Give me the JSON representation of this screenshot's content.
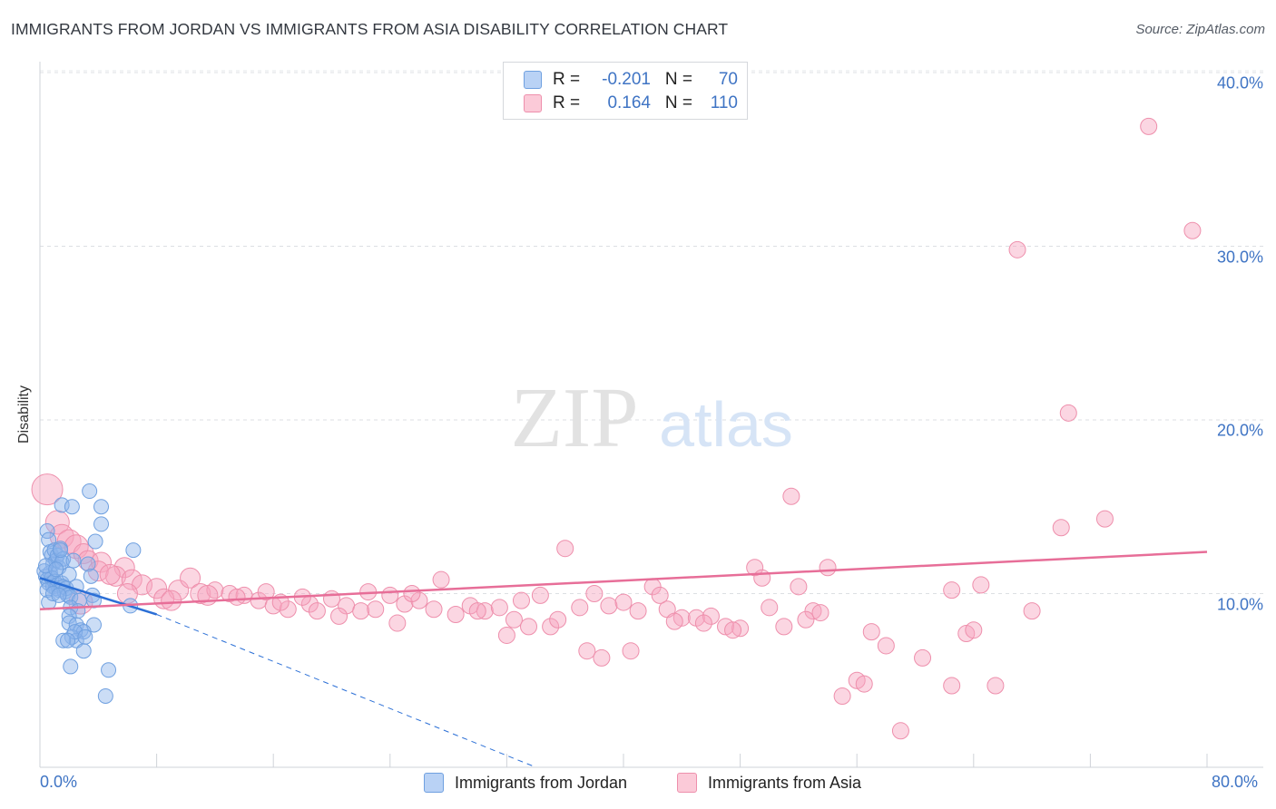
{
  "title": "IMMIGRANTS FROM JORDAN VS IMMIGRANTS FROM ASIA DISABILITY CORRELATION CHART",
  "source": "Source: ZipAtlas.com",
  "watermark": {
    "zip": "ZIP",
    "atlas": "atlas"
  },
  "colors": {
    "blue": "#6fa0e0",
    "blue_line": "#2b6fd6",
    "pink": "#ee8fac",
    "pink_line": "#e76e98",
    "axis_text": "#3f74c4"
  },
  "legend": {
    "rows": [
      {
        "r_label": "R =",
        "r_value": "-0.201",
        "n_label": "N =",
        "n_value": "70"
      },
      {
        "r_label": "R =",
        "r_value": "0.164",
        "n_label": "N =",
        "n_value": "110"
      }
    ]
  },
  "bottom_legend": {
    "blue": "Immigrants from Jordan",
    "pink": "Immigrants from Asia"
  },
  "chart_data": {
    "type": "scatter",
    "title": "IMMIGRANTS FROM JORDAN VS IMMIGRANTS FROM ASIA DISABILITY CORRELATION CHART",
    "xlabel": "",
    "ylabel": "Disability",
    "xlim": [
      0,
      80
    ],
    "ylim": [
      0,
      40
    ],
    "x_tick_labels": [
      "0.0%",
      "80.0%"
    ],
    "y_ticks": [
      10,
      20,
      30,
      40
    ],
    "y_tick_labels": [
      "10.0%",
      "20.0%",
      "30.0%",
      "40.0%"
    ],
    "grid": true,
    "legend_position": "top-center",
    "series": [
      {
        "name": "Immigrants from Jordan",
        "r": -0.201,
        "n": 70,
        "trend": {
          "x0": 0,
          "y0": 10.9,
          "x1": 8,
          "y1": 8.8,
          "dashed_to_x": 34,
          "dashed_to_y": 0
        },
        "points": [
          [
            0.5,
            13.6
          ],
          [
            0.6,
            13.1
          ],
          [
            0.7,
            12.4
          ],
          [
            0.8,
            12.2
          ],
          [
            0.9,
            11.7
          ],
          [
            1.0,
            12.5
          ],
          [
            1.1,
            11.9
          ],
          [
            1.2,
            12.2
          ],
          [
            1.3,
            11.5
          ],
          [
            1.4,
            12.6
          ],
          [
            0.4,
            11.0
          ],
          [
            0.5,
            10.8
          ],
          [
            0.6,
            10.6
          ],
          [
            0.7,
            11.2
          ],
          [
            0.8,
            10.9
          ],
          [
            0.9,
            10.4
          ],
          [
            1.0,
            10.7
          ],
          [
            1.1,
            10.3
          ],
          [
            1.2,
            10.5
          ],
          [
            1.3,
            10.2
          ],
          [
            1.5,
            10.6
          ],
          [
            1.6,
            10.4
          ],
          [
            1.7,
            10.1
          ],
          [
            1.8,
            10.3
          ],
          [
            1.9,
            9.9
          ],
          [
            0.3,
            11.3
          ],
          [
            0.4,
            11.6
          ],
          [
            0.5,
            10.2
          ],
          [
            0.6,
            9.5
          ],
          [
            2.0,
            11.1
          ],
          [
            1.6,
            12.0
          ],
          [
            1.5,
            11.8
          ],
          [
            1.4,
            12.5
          ],
          [
            1.5,
            15.1
          ],
          [
            2.2,
            15.0
          ],
          [
            3.4,
            15.9
          ],
          [
            4.2,
            15.0
          ],
          [
            4.2,
            14.0
          ],
          [
            3.8,
            13.0
          ],
          [
            6.4,
            12.5
          ],
          [
            3.3,
            11.7
          ],
          [
            3.5,
            11.0
          ],
          [
            2.5,
            10.4
          ],
          [
            2.1,
            9.8
          ],
          [
            2.7,
            9.6
          ],
          [
            3.6,
            9.9
          ],
          [
            3.7,
            9.6
          ],
          [
            6.2,
            9.3
          ],
          [
            2.1,
            9.2
          ],
          [
            2.6,
            9.0
          ],
          [
            2.0,
            8.7
          ],
          [
            2.0,
            8.3
          ],
          [
            2.5,
            8.2
          ],
          [
            3.7,
            8.2
          ],
          [
            2.8,
            7.9
          ],
          [
            3.0,
            7.8
          ],
          [
            2.2,
            7.5
          ],
          [
            2.5,
            7.3
          ],
          [
            2.4,
            7.8
          ],
          [
            1.6,
            7.3
          ],
          [
            1.9,
            7.3
          ],
          [
            3.1,
            7.5
          ],
          [
            3.0,
            6.7
          ],
          [
            2.1,
            5.8
          ],
          [
            4.7,
            5.6
          ],
          [
            4.5,
            4.1
          ],
          [
            0.9,
            10.0
          ],
          [
            1.3,
            9.9
          ],
          [
            2.3,
            11.9
          ],
          [
            1.1,
            11.4
          ]
        ]
      },
      {
        "name": "Immigrants from Asia",
        "r": 0.164,
        "n": 110,
        "trend": {
          "x0": 0,
          "y0": 9.1,
          "x1": 80,
          "y1": 12.4
        },
        "points": [
          [
            0.5,
            16.0
          ],
          [
            1.2,
            14.1
          ],
          [
            1.5,
            13.3
          ],
          [
            2.0,
            13.0
          ],
          [
            2.5,
            12.7
          ],
          [
            3.0,
            12.3
          ],
          [
            3.3,
            11.9
          ],
          [
            4.2,
            11.8
          ],
          [
            4.0,
            11.3
          ],
          [
            5.8,
            11.5
          ],
          [
            5.2,
            11.0
          ],
          [
            6.3,
            10.8
          ],
          [
            7.0,
            10.5
          ],
          [
            8.0,
            10.3
          ],
          [
            9.5,
            10.2
          ],
          [
            10.3,
            10.9
          ],
          [
            11.0,
            10.0
          ],
          [
            12.0,
            10.2
          ],
          [
            13.0,
            10.0
          ],
          [
            14.0,
            9.9
          ],
          [
            15.0,
            9.6
          ],
          [
            16.0,
            9.3
          ],
          [
            17.0,
            9.1
          ],
          [
            18.5,
            9.4
          ],
          [
            19.0,
            9.0
          ],
          [
            20.0,
            9.7
          ],
          [
            21.0,
            9.3
          ],
          [
            22.0,
            9.0
          ],
          [
            23.0,
            9.1
          ],
          [
            24.0,
            9.9
          ],
          [
            25.0,
            9.4
          ],
          [
            26.0,
            9.6
          ],
          [
            27.0,
            9.1
          ],
          [
            28.5,
            8.8
          ],
          [
            29.5,
            9.3
          ],
          [
            30.5,
            9.0
          ],
          [
            31.5,
            9.2
          ],
          [
            32.5,
            8.5
          ],
          [
            33.5,
            8.1
          ],
          [
            34.3,
            9.9
          ],
          [
            35.0,
            8.1
          ],
          [
            36.0,
            12.6
          ],
          [
            37.0,
            9.2
          ],
          [
            38.0,
            10.0
          ],
          [
            39.0,
            9.3
          ],
          [
            40.0,
            9.5
          ],
          [
            41.0,
            9.0
          ],
          [
            42.0,
            10.4
          ],
          [
            43.0,
            9.1
          ],
          [
            44.0,
            8.6
          ],
          [
            45.0,
            8.6
          ],
          [
            46.0,
            8.7
          ],
          [
            47.0,
            8.1
          ],
          [
            48.0,
            8.0
          ],
          [
            49.0,
            11.5
          ],
          [
            50.0,
            9.2
          ],
          [
            51.0,
            8.1
          ],
          [
            52.0,
            10.4
          ],
          [
            53.0,
            9.0
          ],
          [
            54.0,
            11.5
          ],
          [
            2.8,
            9.5
          ],
          [
            6.0,
            10.0
          ],
          [
            8.5,
            9.7
          ],
          [
            11.5,
            9.9
          ],
          [
            13.5,
            9.8
          ],
          [
            15.5,
            10.1
          ],
          [
            18.0,
            9.8
          ],
          [
            20.5,
            8.7
          ],
          [
            22.5,
            10.1
          ],
          [
            25.5,
            10.0
          ],
          [
            27.5,
            10.8
          ],
          [
            30.0,
            9.0
          ],
          [
            32.0,
            7.6
          ],
          [
            35.5,
            8.5
          ],
          [
            37.5,
            6.7
          ],
          [
            38.5,
            6.3
          ],
          [
            40.5,
            6.7
          ],
          [
            43.5,
            8.4
          ],
          [
            45.5,
            8.3
          ],
          [
            47.5,
            7.9
          ],
          [
            52.5,
            8.5
          ],
          [
            53.5,
            8.9
          ],
          [
            55.0,
            4.1
          ],
          [
            56.0,
            5.0
          ],
          [
            56.5,
            4.8
          ],
          [
            57.0,
            7.8
          ],
          [
            58.0,
            7.0
          ],
          [
            59.0,
            2.1
          ],
          [
            60.5,
            6.3
          ],
          [
            62.5,
            4.7
          ],
          [
            63.5,
            7.7
          ],
          [
            64.0,
            7.9
          ],
          [
            64.5,
            10.5
          ],
          [
            65.5,
            4.7
          ],
          [
            68.0,
            9.0
          ],
          [
            70.0,
            13.8
          ],
          [
            73.0,
            14.3
          ],
          [
            67.0,
            29.8
          ],
          [
            70.5,
            20.4
          ],
          [
            79.0,
            30.9
          ],
          [
            76.0,
            36.9
          ],
          [
            62.5,
            10.2
          ],
          [
            49.5,
            10.9
          ],
          [
            51.5,
            15.6
          ],
          [
            33.0,
            9.6
          ],
          [
            42.5,
            9.9
          ],
          [
            24.5,
            8.3
          ],
          [
            16.5,
            9.5
          ],
          [
            9.0,
            9.6
          ],
          [
            4.8,
            11.1
          ]
        ]
      }
    ]
  }
}
